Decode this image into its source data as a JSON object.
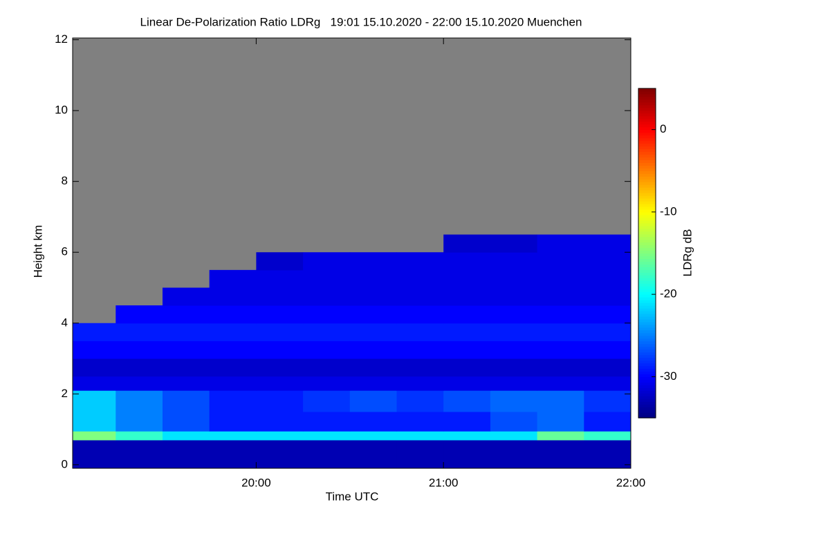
{
  "chart_data": {
    "type": "heatmap",
    "title": "Linear De-Polarization Ratio LDRg   19:01 15.10.2020 - 22:00 15.10.2020 Muenchen",
    "x_label": "Time UTC",
    "y_label": "Height km",
    "colorbar_label": "LDRg dB",
    "x_edges": [
      19.02,
      19.25,
      19.5,
      19.75,
      20.0,
      20.25,
      20.5,
      20.75,
      21.0,
      21.25,
      21.5,
      21.75,
      22.0
    ],
    "y_edges": [
      -0.1,
      0.7,
      0.95,
      1.5,
      2.1,
      2.5,
      3,
      3.5,
      4,
      4.5,
      5,
      5.5,
      6,
      6.5,
      12.05
    ],
    "z": [
      [
        -33,
        -33,
        -33,
        -33,
        -33,
        -33,
        -33,
        -33,
        -33,
        -33,
        -33,
        -33
      ],
      [
        -15,
        -18,
        -21,
        -21,
        -21,
        -21,
        -21,
        -21,
        -21,
        -21,
        -16,
        -18
      ],
      [
        -22,
        -25,
        -27,
        -29,
        -29,
        -29,
        -29,
        -29,
        -29,
        -27,
        -26,
        -29
      ],
      [
        -22,
        -25,
        -27,
        -29,
        -29,
        -28,
        -27,
        -28,
        -27,
        -26,
        -26,
        -28
      ],
      [
        -31,
        -31,
        -31,
        -31,
        -31,
        -31,
        -31,
        -31,
        -31,
        -31,
        -31,
        -31
      ],
      [
        -32,
        -32,
        -32,
        -32,
        -32,
        -32,
        -32,
        -32,
        -32,
        -32,
        -32,
        -32
      ],
      [
        -30,
        -30,
        -30,
        -30,
        -30,
        -30,
        -30,
        -30,
        -30,
        -30,
        -30,
        -30
      ],
      [
        -29,
        -29,
        -29,
        -29,
        -29,
        -29,
        -29,
        -29,
        -29,
        -29,
        -29,
        -29
      ],
      [
        null,
        -30,
        -30,
        -30,
        -30,
        -30,
        -30,
        -30,
        -30,
        -30,
        -30,
        -30
      ],
      [
        null,
        null,
        -31,
        -31,
        -31,
        -31,
        -31,
        -31,
        -31,
        -31,
        -31,
        -31
      ],
      [
        null,
        null,
        null,
        -31,
        -31,
        -31,
        -31,
        -31,
        -31,
        -31,
        -31,
        -31
      ],
      [
        null,
        null,
        null,
        null,
        -32,
        -31,
        -31,
        -31,
        -31,
        -31,
        -31,
        -31
      ],
      [
        null,
        null,
        null,
        null,
        null,
        null,
        null,
        null,
        -32,
        -32,
        -31,
        -31
      ],
      [
        null,
        null,
        null,
        null,
        null,
        null,
        null,
        null,
        null,
        null,
        null,
        null
      ]
    ],
    "nodata_color": "#808080",
    "colormap": "jet",
    "xlim": [
      19.02,
      22.0
    ],
    "xticks": [
      {
        "value": 20,
        "label": "20:00"
      },
      {
        "value": 21,
        "label": "21:00"
      },
      {
        "value": 22,
        "label": "22:00"
      }
    ],
    "ylim": [
      -0.1,
      12.05
    ],
    "yticks": [
      0,
      2,
      4,
      6,
      8,
      10,
      12
    ],
    "zlim": [
      -35,
      5
    ],
    "zticks": [
      0,
      -10,
      -20,
      -30
    ]
  }
}
